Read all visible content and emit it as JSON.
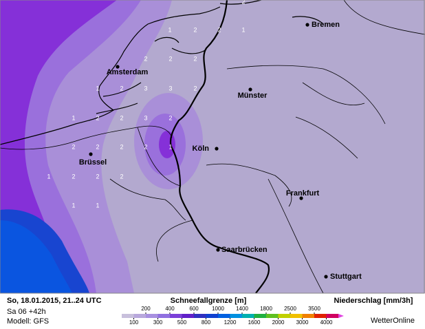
{
  "cities": [
    {
      "name": "Bremen"
    },
    {
      "name": "Amsterdam"
    },
    {
      "name": "Münster"
    },
    {
      "name": "Köln"
    },
    {
      "name": "Brüssel"
    },
    {
      "name": "Frankfurt"
    },
    {
      "name": "Saarbrücken"
    },
    {
      "name": "Stuttgart"
    }
  ],
  "grid_labels": [
    "2",
    "1",
    "2",
    "2",
    "1",
    "2",
    "2",
    "2",
    "1",
    "2",
    "3",
    "3",
    "2",
    "1",
    "2",
    "2",
    "3",
    "2",
    "2",
    "2",
    "2",
    "2",
    "1",
    "1",
    "2",
    "2",
    "2",
    "1",
    "1"
  ],
  "footer": {
    "time": "So, 18.01.2015, 21..24 UTC",
    "run": "Sa 06 +42h",
    "model": "Modell: GFS",
    "snow_title": "Schneefallgrenze [m]",
    "precip_title": "Niederschlag [mm/3h]",
    "brand": "WetterOnline"
  },
  "legend": {
    "upper_labels": [
      200,
      400,
      600,
      1000,
      1400,
      1800,
      2500,
      3500
    ],
    "lower_labels": [
      100,
      300,
      500,
      800,
      1200,
      1600,
      2000,
      3000,
      4000
    ],
    "colors": [
      "#c8c0dc",
      "#b8a8dc",
      "#a890e0",
      "#9070e0",
      "#7b40d8",
      "#6020c8",
      "#3030c0",
      "#1040d0",
      "#0060e0",
      "#0090e0",
      "#00b0b0",
      "#20b040",
      "#60c020",
      "#c0d000",
      "#f0c000",
      "#f08000",
      "#e02000",
      "#d00060"
    ]
  }
}
